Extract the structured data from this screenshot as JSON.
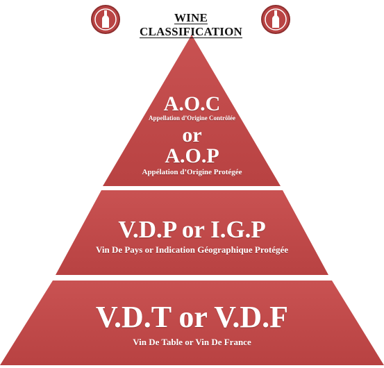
{
  "header": {
    "title": "WINE CLASSIFICATION",
    "left_badge_icon": "wine-bottle-icon",
    "right_badge_icon": "wine-bottle-icon"
  },
  "colors": {
    "tier_fill": "#C24B4B",
    "tier_fill_dark": "#A83B3B",
    "badge_fill": "#B94444",
    "text": "#FFFFFF"
  },
  "tiers": [
    {
      "code_1": "A.O.C",
      "name_1": "Appellation d’Origine Contrôlée",
      "connector": "or",
      "code_2": "A.O.P",
      "name_2": "Appélation d’Origine Protégée"
    },
    {
      "code": "V.D.P or I.G.P",
      "name": "Vin De Pays or Indication Géographique Protégée"
    },
    {
      "code": "V.D.T or V.D.F",
      "name": "Vin De Table or Vin De France"
    }
  ]
}
